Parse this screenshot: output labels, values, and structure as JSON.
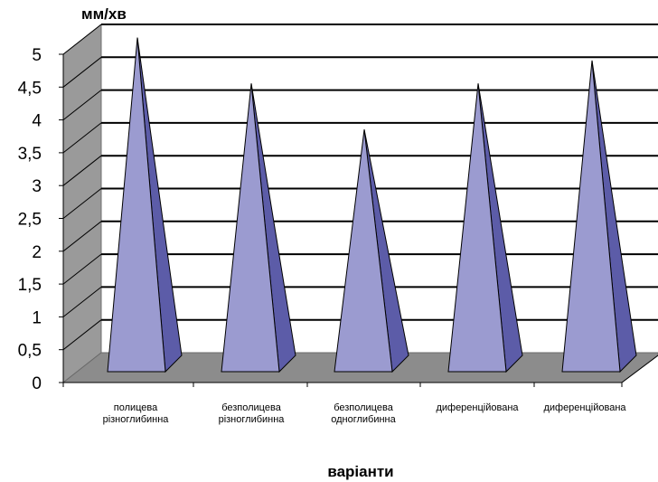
{
  "chart_data": {
    "type": "bar",
    "style": "3d-pyramid",
    "ylabel": "мм/хв",
    "xlabel": "варіанти",
    "ylim": [
      0,
      5
    ],
    "yticks": [
      "0",
      "0,5",
      "1",
      "1,5",
      "2",
      "2,5",
      "3",
      "3,5",
      "4",
      "4,5",
      "5"
    ],
    "categories": [
      [
        "полицева",
        "різноглибинна"
      ],
      [
        "безполицева",
        "різноглибинна"
      ],
      [
        "безполицева",
        "одноглибинна"
      ],
      [
        "диференційована"
      ],
      [
        "диференційована"
      ]
    ],
    "values": [
      4.8,
      4.1,
      3.4,
      4.1,
      4.45
    ],
    "grid": true,
    "legend": "none",
    "colors": {
      "pyramid_front": "#9b9bd0",
      "pyramid_side": "#5c5ca8",
      "floor": "#8c8c8c",
      "wall": "#9a9a9a",
      "grid": "#000000"
    }
  }
}
